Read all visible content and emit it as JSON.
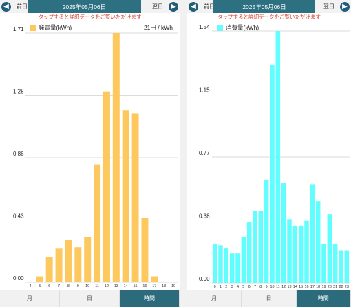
{
  "colors": {
    "accent": "#2c7081",
    "generation": "#fdc95f",
    "consumption": "#60fefe",
    "notice": "#d83a2a"
  },
  "left_panel": {
    "prev_label": "前日",
    "next_label": "翌日",
    "date": "2025年05月06日",
    "notice": "タップすると詳細データをご覧いただけます",
    "legend": "発電量(kWh)",
    "rate": "21円 / kWh",
    "tabs": [
      "月",
      "日",
      "時間"
    ],
    "active_tab": 2
  },
  "right_panel": {
    "prev_label": "前日",
    "next_label": "翌日",
    "date": "2025年05月06日",
    "notice": "タップすると詳細データをご覧いただけます",
    "legend": "消費量(kWh)",
    "tabs": [
      "月",
      "日",
      "時間"
    ],
    "active_tab": 2
  },
  "chart_data": [
    {
      "type": "bar",
      "ylabel": "発電量(kWh)",
      "ylim": [
        0,
        1.71
      ],
      "yticks": [
        "0.00",
        "0.43",
        "0.86",
        "1.28",
        "1.71"
      ],
      "categories": [
        "4",
        "5",
        "6",
        "7",
        "8",
        "9",
        "10",
        "11",
        "12",
        "13",
        "14",
        "15",
        "16",
        "17",
        "18",
        "19"
      ],
      "values": [
        0,
        0.04,
        0.17,
        0.23,
        0.29,
        0.24,
        0.31,
        0.81,
        1.31,
        1.71,
        1.18,
        1.16,
        0.44,
        0.04,
        0,
        0
      ],
      "color": "#fdc95f",
      "grid": true
    },
    {
      "type": "bar",
      "ylabel": "消費量(kWh)",
      "ylim": [
        0,
        1.54
      ],
      "yticks": [
        "0.00",
        "0.38",
        "0.77",
        "1.15",
        "1.54"
      ],
      "categories": [
        "0",
        "1",
        "2",
        "3",
        "4",
        "5",
        "6",
        "7",
        "8",
        "9",
        "10",
        "11",
        "12",
        "13",
        "14",
        "15",
        "16",
        "17",
        "18",
        "19",
        "20",
        "21",
        "22",
        "23"
      ],
      "values": [
        0.24,
        0.23,
        0.21,
        0.18,
        0.18,
        0.28,
        0.37,
        0.44,
        0.44,
        0.63,
        1.33,
        1.54,
        0.61,
        0.39,
        0.35,
        0.35,
        0.38,
        0.6,
        0.5,
        0.24,
        0.42,
        0.24,
        0.2,
        0.2
      ],
      "color": "#60fefe",
      "grid": true
    }
  ]
}
